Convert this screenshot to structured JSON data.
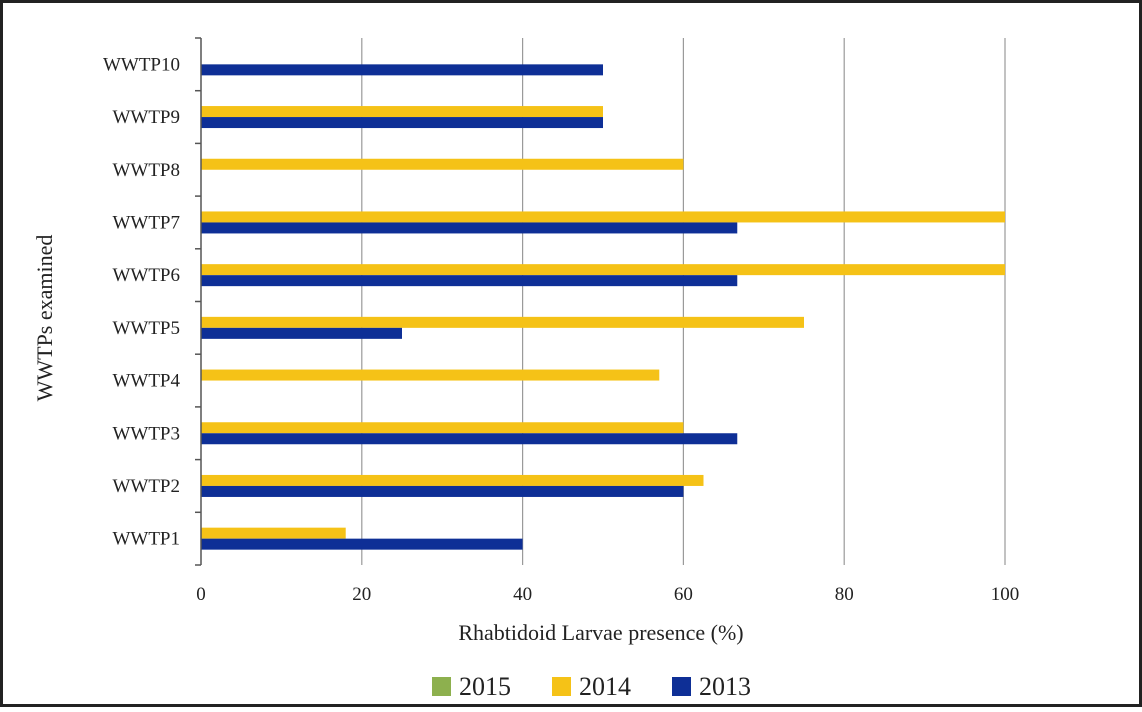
{
  "chart_data": {
    "type": "bar",
    "orientation": "horizontal",
    "categories": [
      "WWTP1",
      "WWTP2",
      "WWTP3",
      "WWTP4",
      "WWTP5",
      "WWTP6",
      "WWTP7",
      "WWTP8",
      "WWTP9",
      "WWTP10"
    ],
    "series": [
      {
        "name": "2015",
        "color": "#8db04e",
        "values": [
          0,
          0,
          0,
          0,
          0,
          0,
          0,
          0,
          0,
          0
        ]
      },
      {
        "name": "2014",
        "color": "#f5c217",
        "values": [
          18,
          62.5,
          60,
          57,
          75,
          100,
          100,
          60,
          50,
          0
        ]
      },
      {
        "name": "2013",
        "color": "#0e2f96",
        "values": [
          40,
          60,
          66.7,
          0,
          25,
          66.7,
          66.7,
          0,
          50,
          50
        ]
      }
    ],
    "title": "",
    "xlabel": "Rhabtidoid Larvae presence (%)",
    "ylabel": "WWTPs examined",
    "xlim": [
      0,
      100
    ],
    "xticks": [
      0,
      20,
      40,
      60,
      80,
      100
    ],
    "grid": "vertical",
    "legend_position": "bottom"
  }
}
